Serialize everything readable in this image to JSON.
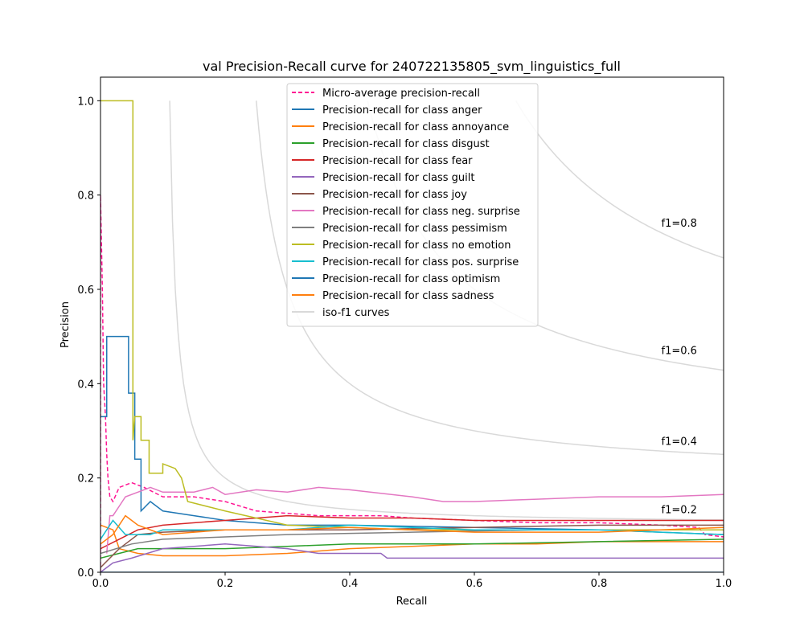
{
  "chart_data": {
    "type": "line",
    "title": "val Precision-Recall curve for 240722135805_svm_linguistics_full",
    "xlabel": "Recall",
    "ylabel": "Precision",
    "xlim": [
      0.0,
      1.0
    ],
    "ylim": [
      0.0,
      1.05
    ],
    "x_ticks": [
      "0.0",
      "0.2",
      "0.4",
      "0.6",
      "0.8",
      "1.0"
    ],
    "y_ticks": [
      "0.0",
      "0.2",
      "0.4",
      "0.6",
      "0.8",
      "1.0"
    ],
    "grid": false,
    "legend_position": "top-center",
    "iso_f1": {
      "color": "#d9d9d9",
      "values": [
        0.2,
        0.4,
        0.6,
        0.8
      ],
      "labels": [
        "f1=0.2",
        "f1=0.4",
        "f1=0.6",
        "f1=0.8"
      ]
    },
    "series": [
      {
        "name": "Micro-average precision-recall",
        "color": "#ff1493",
        "dash": true,
        "points": [
          [
            0.0,
            0.0
          ],
          [
            0.0,
            0.8
          ],
          [
            0.003,
            0.6
          ],
          [
            0.005,
            0.4
          ],
          [
            0.008,
            0.33
          ],
          [
            0.01,
            0.25
          ],
          [
            0.012,
            0.2
          ],
          [
            0.015,
            0.16
          ],
          [
            0.02,
            0.15
          ],
          [
            0.03,
            0.18
          ],
          [
            0.05,
            0.19
          ],
          [
            0.07,
            0.18
          ],
          [
            0.1,
            0.16
          ],
          [
            0.15,
            0.16
          ],
          [
            0.2,
            0.15
          ],
          [
            0.25,
            0.13
          ],
          [
            0.3,
            0.125
          ],
          [
            0.35,
            0.12
          ],
          [
            0.45,
            0.12
          ],
          [
            0.5,
            0.115
          ],
          [
            0.6,
            0.11
          ],
          [
            0.7,
            0.105
          ],
          [
            0.8,
            0.105
          ],
          [
            0.9,
            0.1
          ],
          [
            0.96,
            0.095
          ],
          [
            0.97,
            0.08
          ],
          [
            1.0,
            0.075
          ]
        ]
      },
      {
        "name": "Precision-recall for class anger",
        "color": "#1f77b4",
        "dash": false,
        "points": [
          [
            0.0,
            0.33
          ],
          [
            0.01,
            0.33
          ],
          [
            0.01,
            0.5
          ],
          [
            0.045,
            0.5
          ],
          [
            0.045,
            0.38
          ],
          [
            0.055,
            0.38
          ],
          [
            0.055,
            0.24
          ],
          [
            0.065,
            0.24
          ],
          [
            0.065,
            0.13
          ],
          [
            0.08,
            0.15
          ],
          [
            0.1,
            0.13
          ],
          [
            0.15,
            0.12
          ],
          [
            0.2,
            0.11
          ],
          [
            0.3,
            0.1
          ],
          [
            0.4,
            0.1
          ],
          [
            0.6,
            0.095
          ],
          [
            0.8,
            0.09
          ],
          [
            1.0,
            0.08
          ]
        ]
      },
      {
        "name": "Precision-recall for class annoyance",
        "color": "#ff7f0e",
        "dash": false,
        "points": [
          [
            0.0,
            0.1
          ],
          [
            0.02,
            0.09
          ],
          [
            0.03,
            0.05
          ],
          [
            0.06,
            0.04
          ],
          [
            0.1,
            0.035
          ],
          [
            0.2,
            0.035
          ],
          [
            0.3,
            0.04
          ],
          [
            0.4,
            0.05
          ],
          [
            0.5,
            0.055
          ],
          [
            0.6,
            0.06
          ],
          [
            0.7,
            0.06
          ],
          [
            0.8,
            0.065
          ],
          [
            1.0,
            0.065
          ]
        ]
      },
      {
        "name": "Precision-recall for class disgust",
        "color": "#2ca02c",
        "dash": false,
        "points": [
          [
            0.0,
            0.03
          ],
          [
            0.03,
            0.04
          ],
          [
            0.06,
            0.05
          ],
          [
            0.1,
            0.05
          ],
          [
            0.2,
            0.05
          ],
          [
            0.3,
            0.055
          ],
          [
            0.4,
            0.06
          ],
          [
            0.5,
            0.06
          ],
          [
            0.6,
            0.06
          ],
          [
            0.8,
            0.065
          ],
          [
            1.0,
            0.07
          ]
        ]
      },
      {
        "name": "Precision-recall for class fear",
        "color": "#d62728",
        "dash": false,
        "points": [
          [
            0.0,
            0.05
          ],
          [
            0.03,
            0.07
          ],
          [
            0.06,
            0.09
          ],
          [
            0.1,
            0.1
          ],
          [
            0.2,
            0.11
          ],
          [
            0.3,
            0.12
          ],
          [
            0.4,
            0.115
          ],
          [
            0.5,
            0.115
          ],
          [
            0.6,
            0.11
          ],
          [
            0.8,
            0.11
          ],
          [
            1.0,
            0.11
          ]
        ]
      },
      {
        "name": "Precision-recall for class guilt",
        "color": "#9467bd",
        "dash": false,
        "points": [
          [
            0.0,
            0.0
          ],
          [
            0.01,
            0.01
          ],
          [
            0.02,
            0.02
          ],
          [
            0.05,
            0.03
          ],
          [
            0.1,
            0.05
          ],
          [
            0.2,
            0.06
          ],
          [
            0.3,
            0.05
          ],
          [
            0.35,
            0.04
          ],
          [
            0.45,
            0.04
          ],
          [
            0.46,
            0.03
          ],
          [
            0.6,
            0.03
          ],
          [
            0.8,
            0.03
          ],
          [
            1.0,
            0.03
          ]
        ]
      },
      {
        "name": "Precision-recall for class joy",
        "color": "#8c564b",
        "dash": false,
        "points": [
          [
            0.0,
            0.01
          ],
          [
            0.03,
            0.05
          ],
          [
            0.06,
            0.08
          ],
          [
            0.1,
            0.085
          ],
          [
            0.2,
            0.09
          ],
          [
            0.3,
            0.09
          ],
          [
            0.4,
            0.09
          ],
          [
            0.6,
            0.095
          ],
          [
            0.8,
            0.1
          ],
          [
            1.0,
            0.1
          ]
        ]
      },
      {
        "name": "Precision-recall for class neg. surprise",
        "color": "#e377c2",
        "dash": false,
        "points": [
          [
            0.01,
            0.04
          ],
          [
            0.015,
            0.12
          ],
          [
            0.02,
            0.12
          ],
          [
            0.03,
            0.14
          ],
          [
            0.04,
            0.16
          ],
          [
            0.06,
            0.17
          ],
          [
            0.08,
            0.18
          ],
          [
            0.1,
            0.17
          ],
          [
            0.15,
            0.17
          ],
          [
            0.18,
            0.18
          ],
          [
            0.2,
            0.165
          ],
          [
            0.25,
            0.175
          ],
          [
            0.3,
            0.17
          ],
          [
            0.35,
            0.18
          ],
          [
            0.4,
            0.175
          ],
          [
            0.5,
            0.16
          ],
          [
            0.55,
            0.15
          ],
          [
            0.6,
            0.15
          ],
          [
            0.7,
            0.155
          ],
          [
            0.8,
            0.16
          ],
          [
            0.9,
            0.16
          ],
          [
            1.0,
            0.165
          ]
        ]
      },
      {
        "name": "Precision-recall for class pessimism",
        "color": "#7f7f7f",
        "dash": false,
        "points": [
          [
            0.0,
            0.04
          ],
          [
            0.05,
            0.06
          ],
          [
            0.1,
            0.07
          ],
          [
            0.2,
            0.075
          ],
          [
            0.3,
            0.08
          ],
          [
            0.5,
            0.085
          ],
          [
            0.7,
            0.09
          ],
          [
            1.0,
            0.09
          ]
        ]
      },
      {
        "name": "Precision-recall for class no emotion",
        "color": "#bcbd22",
        "dash": false,
        "points": [
          [
            0.0,
            1.0
          ],
          [
            0.052,
            1.0
          ],
          [
            0.052,
            0.28
          ],
          [
            0.055,
            0.33
          ],
          [
            0.065,
            0.33
          ],
          [
            0.065,
            0.28
          ],
          [
            0.078,
            0.28
          ],
          [
            0.078,
            0.21
          ],
          [
            0.1,
            0.21
          ],
          [
            0.1,
            0.23
          ],
          [
            0.12,
            0.22
          ],
          [
            0.13,
            0.2
          ],
          [
            0.14,
            0.15
          ],
          [
            0.2,
            0.13
          ],
          [
            0.3,
            0.1
          ],
          [
            0.5,
            0.09
          ],
          [
            0.7,
            0.09
          ],
          [
            1.0,
            0.09
          ]
        ]
      },
      {
        "name": "Precision-recall for class pos. surprise",
        "color": "#17becf",
        "dash": false,
        "points": [
          [
            0.0,
            0.07
          ],
          [
            0.02,
            0.11
          ],
          [
            0.04,
            0.08
          ],
          [
            0.08,
            0.08
          ],
          [
            0.1,
            0.09
          ],
          [
            0.2,
            0.09
          ],
          [
            0.3,
            0.09
          ],
          [
            0.4,
            0.1
          ],
          [
            0.5,
            0.095
          ],
          [
            0.6,
            0.09
          ],
          [
            0.8,
            0.09
          ],
          [
            1.0,
            0.08
          ]
        ]
      },
      {
        "name": "Precision-recall for class optimism",
        "color": "#1f77b4",
        "dash": false,
        "points": [
          [
            0.0,
            0.0
          ],
          [
            1.0,
            0.0
          ]
        ]
      },
      {
        "name": "Precision-recall for class sadness",
        "color": "#ff7f0e",
        "dash": false,
        "points": [
          [
            0.0,
            0.06
          ],
          [
            0.02,
            0.08
          ],
          [
            0.04,
            0.12
          ],
          [
            0.06,
            0.1
          ],
          [
            0.1,
            0.08
          ],
          [
            0.2,
            0.09
          ],
          [
            0.3,
            0.09
          ],
          [
            0.4,
            0.095
          ],
          [
            0.5,
            0.09
          ],
          [
            0.6,
            0.085
          ],
          [
            0.8,
            0.085
          ],
          [
            1.0,
            0.095
          ]
        ]
      }
    ],
    "legend": [
      {
        "label": "Micro-average precision-recall",
        "color": "#ff1493",
        "dash": true
      },
      {
        "label": "Precision-recall for class anger",
        "color": "#1f77b4",
        "dash": false
      },
      {
        "label": "Precision-recall for class annoyance",
        "color": "#ff7f0e",
        "dash": false
      },
      {
        "label": "Precision-recall for class disgust",
        "color": "#2ca02c",
        "dash": false
      },
      {
        "label": "Precision-recall for class fear",
        "color": "#d62728",
        "dash": false
      },
      {
        "label": "Precision-recall for class guilt",
        "color": "#9467bd",
        "dash": false
      },
      {
        "label": "Precision-recall for class joy",
        "color": "#8c564b",
        "dash": false
      },
      {
        "label": "Precision-recall for class neg. surprise",
        "color": "#e377c2",
        "dash": false
      },
      {
        "label": "Precision-recall for class pessimism",
        "color": "#7f7f7f",
        "dash": false
      },
      {
        "label": "Precision-recall for class no emotion",
        "color": "#bcbd22",
        "dash": false
      },
      {
        "label": "Precision-recall for class pos. surprise",
        "color": "#17becf",
        "dash": false
      },
      {
        "label": "Precision-recall for class optimism",
        "color": "#1f77b4",
        "dash": false
      },
      {
        "label": "Precision-recall for class sadness",
        "color": "#ff7f0e",
        "dash": false
      },
      {
        "label": "iso-f1 curves",
        "color": "#d9d9d9",
        "dash": false
      }
    ]
  }
}
